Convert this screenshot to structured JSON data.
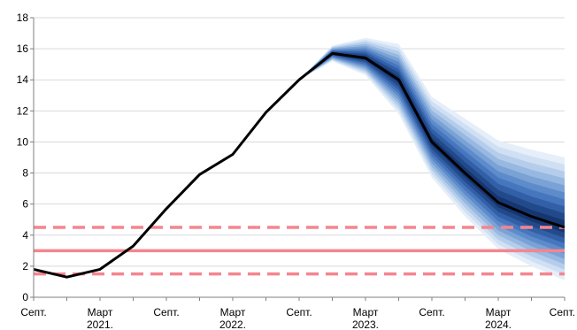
{
  "chart_data": {
    "type": "line",
    "title": "",
    "xlabel": "",
    "ylabel": "",
    "ylim": [
      0,
      18
    ],
    "yticks": [
      "0",
      "2",
      "4",
      "6",
      "8",
      "10",
      "12",
      "14",
      "16",
      "18"
    ],
    "xticks": [
      {
        "line1": "Септ.",
        "line2": ""
      },
      {
        "line1": "Март",
        "line2": "2021."
      },
      {
        "line1": "Септ.",
        "line2": ""
      },
      {
        "line1": "Март",
        "line2": "2022."
      },
      {
        "line1": "Септ.",
        "line2": ""
      },
      {
        "line1": "Март",
        "line2": "2023."
      },
      {
        "line1": "Септ.",
        "line2": ""
      },
      {
        "line1": "Март",
        "line2": "2024."
      },
      {
        "line1": "Септ.",
        "line2": ""
      }
    ],
    "quarters": [
      "2020-09",
      "2020-12",
      "2021-03",
      "2021-06",
      "2021-09",
      "2021-12",
      "2022-03",
      "2022-06",
      "2022-09",
      "2022-12",
      "2023-03",
      "2023-06",
      "2023-09",
      "2023-12",
      "2024-03",
      "2024-06",
      "2024-09"
    ],
    "grid": true,
    "legend": "none",
    "series": [
      {
        "role": "central",
        "color": "#000000",
        "values": [
          1.8,
          1.3,
          1.8,
          3.3,
          5.7,
          7.9,
          9.2,
          11.9,
          14.0,
          15.7,
          15.4,
          14.0,
          10.0,
          8.0,
          6.1,
          5.2,
          4.5
        ]
      },
      {
        "role": "target",
        "color": "#f4858f",
        "values": [
          3.0,
          3.0
        ]
      },
      {
        "role": "tolerance-upper",
        "color": "#f4858f",
        "values": [
          4.5,
          4.5
        ]
      },
      {
        "role": "tolerance-lower",
        "color": "#f4858f",
        "values": [
          1.5,
          1.5
        ]
      }
    ],
    "fan": {
      "start_index": 8,
      "outer_upper": [
        14.0,
        16.2,
        16.7,
        16.3,
        12.9,
        11.5,
        10.1,
        9.5,
        9.0
      ],
      "outer_lower": [
        14.0,
        15.2,
        14.3,
        11.8,
        7.7,
        5.2,
        3.1,
        2.0,
        1.1
      ],
      "colors": [
        "#e5eef9",
        "#cfe0f3",
        "#b5cdeb",
        "#97b8e0",
        "#7aa2d5",
        "#5e8bca",
        "#4676bd",
        "#325fa6",
        "#224a8a",
        "#163672"
      ]
    }
  }
}
